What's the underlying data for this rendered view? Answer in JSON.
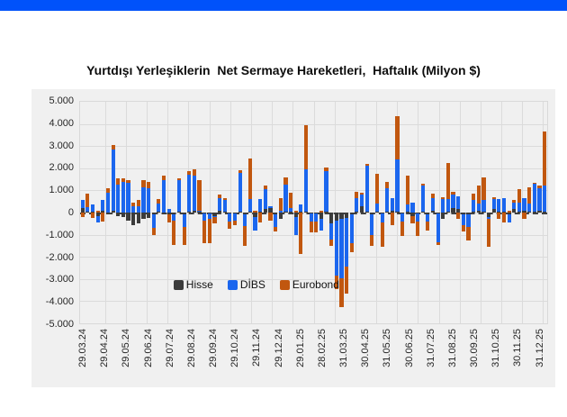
{
  "banner": {
    "color": "#0052FA"
  },
  "title": "Yurtdışı Yerleşiklerin  Net Sermaye Hareketleri,  Haftalık (Milyon $)",
  "colors": {
    "chart_background": "#f0f0f0",
    "gridline": "#dbdbdb",
    "zero_line": "#3f3f3f",
    "hisse": "#3B3B3B",
    "dibs": "#1B66EE",
    "eurobond": "#C1570F"
  },
  "chart_data": {
    "type": "bar",
    "stacked": true,
    "title": "Yurtdışı Yerleşiklerin Net Sermaye Hareketleri, Haftalık (Milyon $)",
    "xlabel": "",
    "ylabel": "",
    "ylim": [
      -5000,
      5000
    ],
    "ytick_step": 1000,
    "grid": true,
    "legend_position": "inside-bottom",
    "ytick_labels": [
      "5.000",
      "4.000",
      "3.000",
      "2.000",
      "1.000",
      "0",
      "-1.000",
      "-2.000",
      "-3.000",
      "-4.000",
      "-5.000"
    ],
    "xtick_labels": [
      "29.03.24",
      "29.04.24",
      "29.05.24",
      "29.06.24",
      "29.07.24",
      "29.08.24",
      "29.09.24",
      "29.10.24",
      "29.11.24",
      "29.12.24",
      "29.01.25",
      "28.02.25",
      "31.03.25",
      "30.04.25",
      "31.05.25",
      "30.06.25",
      "31.07.25",
      "31.08.25",
      "30.09.25",
      "31.10.25",
      "30.11.25",
      "31.12.25"
    ],
    "weeks": 92,
    "series": [
      {
        "name": "Hisse",
        "color": "#3B3B3B",
        "values": [
          200,
          50,
          50,
          -150,
          100,
          -100,
          100,
          -150,
          -200,
          -350,
          -550,
          -500,
          -300,
          -250,
          -100,
          50,
          -100,
          -100,
          -100,
          50,
          -100,
          50,
          100,
          50,
          -50,
          -50,
          -150,
          100,
          50,
          -50,
          -50,
          50,
          -100,
          50,
          -200,
          50,
          150,
          200,
          -100,
          -300,
          50,
          50,
          -200,
          50,
          50,
          -50,
          -50,
          -300,
          50,
          -500,
          -350,
          -300,
          -250,
          -100,
          50,
          300,
          50,
          -100,
          50,
          -50,
          50,
          100,
          50,
          -50,
          50,
          -150,
          -50,
          50,
          -100,
          100,
          -50,
          -300,
          50,
          200,
          150,
          -100,
          -100,
          50,
          100,
          50,
          -200,
          150,
          50,
          50,
          -100,
          150,
          50,
          100,
          50,
          50,
          100,
          50
        ]
      },
      {
        "name": "DİBS",
        "color": "#1B66EE",
        "values": [
          350,
          200,
          300,
          -300,
          450,
          900,
          2750,
          1250,
          1400,
          1350,
          300,
          300,
          1150,
          1100,
          -600,
          350,
          1450,
          150,
          -250,
          1400,
          -550,
          1650,
          1550,
          50,
          -300,
          -250,
          -50,
          550,
          500,
          -350,
          -300,
          1750,
          -500,
          550,
          -600,
          550,
          900,
          100,
          -550,
          100,
          1200,
          150,
          -800,
          300,
          1900,
          -350,
          -350,
          -500,
          1800,
          -700,
          -2500,
          -2650,
          -2200,
          -1300,
          600,
          500,
          2050,
          -900,
          350,
          -400,
          1050,
          550,
          2350,
          -350,
          300,
          450,
          -350,
          1150,
          -300,
          550,
          -1300,
          600,
          550,
          600,
          600,
          -450,
          -550,
          500,
          300,
          500,
          -100,
          450,
          550,
          600,
          -350,
          300,
          400,
          550,
          350,
          1250,
          1000,
          1150
        ]
      },
      {
        "name": "Eurobond",
        "color": "#C1570F",
        "values": [
          -200,
          600,
          -250,
          100,
          -400,
          200,
          200,
          300,
          150,
          100,
          150,
          250,
          300,
          300,
          -300,
          200,
          200,
          -350,
          -1100,
          100,
          -800,
          150,
          300,
          1350,
          -1050,
          -1100,
          -300,
          150,
          100,
          -350,
          -200,
          100,
          -900,
          1850,
          100,
          -450,
          150,
          -350,
          -200,
          550,
          350,
          700,
          100,
          -1850,
          2000,
          -500,
          -500,
          100,
          200,
          -300,
          -600,
          -1300,
          -1200,
          -400,
          300,
          100,
          100,
          -500,
          1350,
          -1100,
          300,
          -550,
          1950,
          -650,
          1300,
          -350,
          -650,
          100,
          -400,
          200,
          -100,
          100,
          1650,
          150,
          -300,
          -300,
          -600,
          300,
          800,
          1050,
          -1250,
          100,
          -300,
          -450,
          100,
          100,
          600,
          -300,
          750,
          50,
          100,
          2450
        ]
      }
    ]
  }
}
